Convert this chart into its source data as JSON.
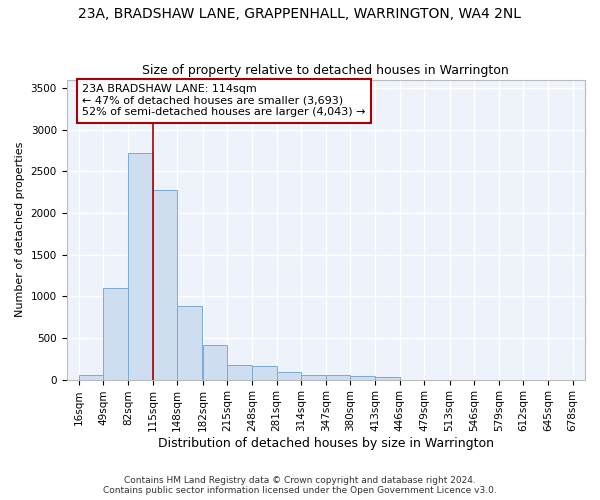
{
  "title": "23A, BRADSHAW LANE, GRAPPENHALL, WARRINGTON, WA4 2NL",
  "subtitle": "Size of property relative to detached houses in Warrington",
  "xlabel": "Distribution of detached houses by size in Warrington",
  "ylabel": "Number of detached properties",
  "bar_color": "#cfddf0",
  "bar_edge_color": "#7aaad4",
  "bg_color": "#edf2fb",
  "grid_color": "#d0d8e8",
  "vline_x": 115,
  "vline_color": "#aa0000",
  "annotation_text": "23A BRADSHAW LANE: 114sqm\n← 47% of detached houses are smaller (3,693)\n52% of semi-detached houses are larger (4,043) →",
  "annotation_box_color": "#aa0000",
  "bins_left_edges": [
    16,
    49,
    82,
    115,
    148,
    182,
    215,
    248,
    281,
    314,
    347,
    380,
    413,
    446,
    479,
    513,
    546,
    579,
    612,
    645
  ],
  "bin_width": 33,
  "values": [
    50,
    1100,
    2720,
    2280,
    880,
    420,
    175,
    165,
    95,
    60,
    50,
    40,
    30,
    0,
    0,
    0,
    0,
    0,
    0,
    0
  ],
  "xlim_left": 16,
  "xlim_right": 678,
  "ylim": [
    0,
    3600
  ],
  "yticks": [
    0,
    500,
    1000,
    1500,
    2000,
    2500,
    3000,
    3500
  ],
  "xtick_positions": [
    16,
    49,
    82,
    115,
    148,
    182,
    215,
    248,
    281,
    314,
    347,
    380,
    413,
    446,
    479,
    513,
    546,
    579,
    612,
    645,
    678
  ],
  "xtick_labels": [
    "16sqm",
    "49sqm",
    "82sqm",
    "115sqm",
    "148sqm",
    "182sqm",
    "215sqm",
    "248sqm",
    "281sqm",
    "314sqm",
    "347sqm",
    "380sqm",
    "413sqm",
    "446sqm",
    "479sqm",
    "513sqm",
    "546sqm",
    "579sqm",
    "612sqm",
    "645sqm",
    "678sqm"
  ],
  "footer": "Contains HM Land Registry data © Crown copyright and database right 2024.\nContains public sector information licensed under the Open Government Licence v3.0.",
  "title_fontsize": 10,
  "subtitle_fontsize": 9,
  "xlabel_fontsize": 9,
  "ylabel_fontsize": 8,
  "tick_fontsize": 7.5,
  "footer_fontsize": 6.5,
  "annot_fontsize": 8
}
